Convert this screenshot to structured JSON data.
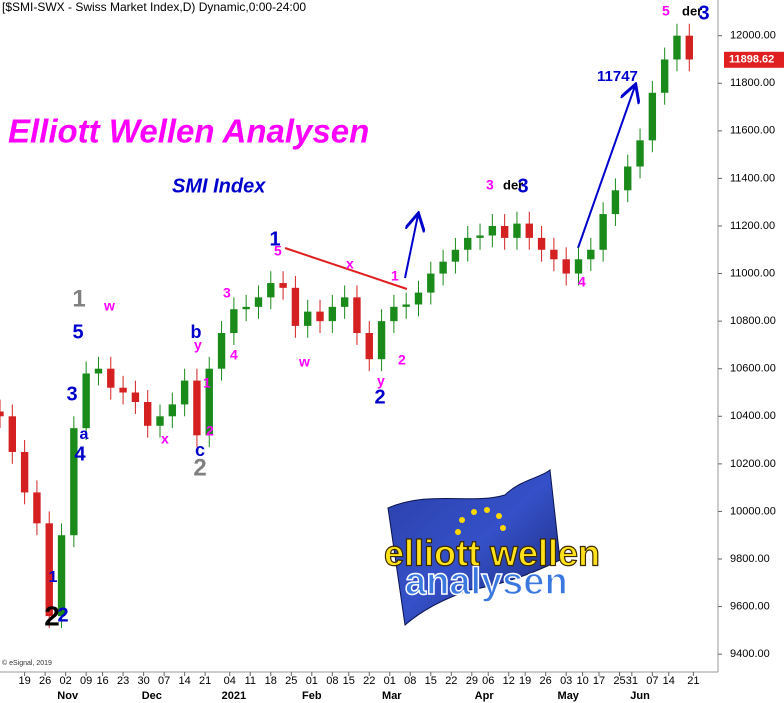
{
  "chart_data": {
    "type": "candlestick",
    "title": "[$SMI-SWX - Swiss Market Index,D) Dynamic,0:00-24:00",
    "x": [
      0,
      3,
      6,
      9,
      12,
      15,
      18,
      21,
      24,
      27,
      30,
      33,
      36,
      39,
      42,
      45,
      48,
      51,
      54,
      57,
      60,
      63,
      66,
      69,
      72,
      75,
      78,
      81,
      84,
      87,
      90,
      93,
      96,
      99,
      102,
      105,
      108,
      111,
      114,
      117,
      120,
      123,
      126,
      129,
      132,
      135,
      138,
      141,
      144,
      147,
      150,
      153,
      156,
      159,
      162,
      165,
      168
    ],
    "open": [
      10420,
      10400,
      10250,
      10080,
      9950,
      9560,
      9900,
      10350,
      10580,
      10600,
      10520,
      10500,
      10460,
      10360,
      10400,
      10450,
      10550,
      10320,
      10600,
      10750,
      10850,
      10860,
      10900,
      10960,
      10940,
      10780,
      10840,
      10800,
      10860,
      10900,
      10750,
      10640,
      10800,
      10860,
      10870,
      10920,
      11000,
      11050,
      11100,
      11150,
      11160,
      11200,
      11150,
      11210,
      11150,
      11100,
      11060,
      11000,
      11060,
      11100,
      11250,
      11350,
      11450,
      11560,
      11760,
      11900,
      12000
    ],
    "high": [
      10470,
      10450,
      10300,
      10130,
      10000,
      9950,
      10400,
      10630,
      10650,
      10650,
      10570,
      10550,
      10510,
      10450,
      10500,
      10600,
      10600,
      10650,
      10800,
      10900,
      10910,
      10950,
      11010,
      11010,
      10990,
      10890,
      10890,
      10910,
      10950,
      10950,
      10800,
      10850,
      10910,
      10920,
      10970,
      11050,
      11100,
      11150,
      11200,
      11210,
      11250,
      11250,
      11260,
      11260,
      11200,
      11150,
      11110,
      11110,
      11150,
      11300,
      11400,
      11500,
      11610,
      11810,
      11950,
      12050,
      12050
    ],
    "low": [
      10350,
      10200,
      10030,
      9900,
      9510,
      9510,
      9850,
      10300,
      10530,
      10470,
      10450,
      10410,
      10310,
      10310,
      10350,
      10400,
      10270,
      10270,
      10550,
      10700,
      10800,
      10810,
      10850,
      10890,
      10730,
      10730,
      10750,
      10750,
      10810,
      10700,
      10590,
      10590,
      10750,
      10810,
      10820,
      10870,
      10950,
      11000,
      11050,
      11100,
      11110,
      11100,
      11100,
      11100,
      11050,
      11010,
      10950,
      10950,
      11010,
      11050,
      11200,
      11300,
      11400,
      11510,
      11710,
      11850,
      11850
    ],
    "close": [
      10400,
      10250,
      10080,
      9950,
      9560,
      9900,
      10350,
      10580,
      10600,
      10520,
      10500,
      10460,
      10360,
      10400,
      10450,
      10550,
      10320,
      10600,
      10750,
      10850,
      10860,
      10900,
      10960,
      10940,
      10780,
      10840,
      10800,
      10860,
      10900,
      10750,
      10640,
      10800,
      10860,
      10870,
      10920,
      11000,
      11050,
      11100,
      11150,
      11160,
      11200,
      11150,
      11210,
      11150,
      11100,
      11060,
      11000,
      11060,
      11100,
      11250,
      11350,
      11450,
      11560,
      11760,
      11900,
      12000,
      11900
    ],
    "up_color": "#1a8a1a",
    "down_color": "#d42020",
    "xlim": [
      0,
      175
    ],
    "ylim": [
      9325,
      12150
    ],
    "yticks": [
      {
        "value": 9400,
        "label": "9400.00"
      },
      {
        "value": 9600,
        "label": "9600.00"
      },
      {
        "value": 9800,
        "label": "9800.00"
      },
      {
        "value": 10000,
        "label": "10000.00"
      },
      {
        "value": 10200,
        "label": "10200.00"
      },
      {
        "value": 10400,
        "label": "10400.00"
      },
      {
        "value": 10600,
        "label": "10600.00"
      },
      {
        "value": 10800,
        "label": "10800.00"
      },
      {
        "value": 11000,
        "label": "11000.00"
      },
      {
        "value": 11200,
        "label": "11200.00"
      },
      {
        "value": 11400,
        "label": "11400.00"
      },
      {
        "value": 11600,
        "label": "11600.00"
      },
      {
        "value": 11800,
        "label": "11800.00"
      },
      {
        "value": 12000,
        "label": "12000.00"
      }
    ],
    "xticks": [
      {
        "value": 6,
        "label": "19"
      },
      {
        "value": 11,
        "label": "26"
      },
      {
        "value": 16,
        "label": "02"
      },
      {
        "value": 21,
        "label": "09"
      },
      {
        "value": 25,
        "label": "16"
      },
      {
        "value": 30,
        "label": "23"
      },
      {
        "value": 35,
        "label": "30"
      },
      {
        "value": 40,
        "label": "07"
      },
      {
        "value": 45,
        "label": "14"
      },
      {
        "value": 50,
        "label": "21"
      },
      {
        "value": 56,
        "label": "04"
      },
      {
        "value": 61,
        "label": "11"
      },
      {
        "value": 66,
        "label": "18"
      },
      {
        "value": 71,
        "label": "25"
      },
      {
        "value": 76,
        "label": "01"
      },
      {
        "value": 81,
        "label": "08"
      },
      {
        "value": 85,
        "label": "15"
      },
      {
        "value": 90,
        "label": "22"
      },
      {
        "value": 95,
        "label": "01"
      },
      {
        "value": 100,
        "label": "08"
      },
      {
        "value": 105,
        "label": "15"
      },
      {
        "value": 110,
        "label": "22"
      },
      {
        "value": 115,
        "label": "29"
      },
      {
        "value": 119,
        "label": "06"
      },
      {
        "value": 124,
        "label": "12"
      },
      {
        "value": 128,
        "label": "19"
      },
      {
        "value": 133,
        "label": "26"
      },
      {
        "value": 138,
        "label": "03"
      },
      {
        "value": 142,
        "label": "10"
      },
      {
        "value": 146,
        "label": "17"
      },
      {
        "value": 151,
        "label": "25"
      },
      {
        "value": 154,
        "label": "31"
      },
      {
        "value": 159,
        "label": "07"
      },
      {
        "value": 163,
        "label": "14"
      },
      {
        "value": 169,
        "label": "21"
      }
    ],
    "month_ticks": [
      {
        "value": 16.5,
        "label": "Nov"
      },
      {
        "value": 37,
        "label": "Dec"
      },
      {
        "value": 57,
        "label": "2021"
      },
      {
        "value": 76,
        "label": "Feb"
      },
      {
        "value": 95.5,
        "label": "Mar"
      },
      {
        "value": 118,
        "label": "Apr"
      },
      {
        "value": 138.5,
        "label": "May"
      },
      {
        "value": 156,
        "label": "Jun"
      }
    ],
    "last_price": 11898.62,
    "headline": "Elliott Wellen Analysen",
    "subtitle": "SMI Index",
    "annotations": [
      "2",
      "2",
      "1",
      "1",
      "5",
      "3",
      "a",
      "4",
      "w",
      "x",
      "b",
      "y",
      "1",
      "2",
      "c",
      "2",
      "3",
      "4",
      "1",
      "5",
      "w",
      "x",
      "1",
      "y",
      "2",
      "2",
      "3",
      "der",
      "3",
      "4",
      "11747",
      "5",
      "der",
      "3"
    ],
    "copyright": "© eSignal, 2019",
    "logo": [
      "elliott wellen",
      "analysen"
    ]
  }
}
